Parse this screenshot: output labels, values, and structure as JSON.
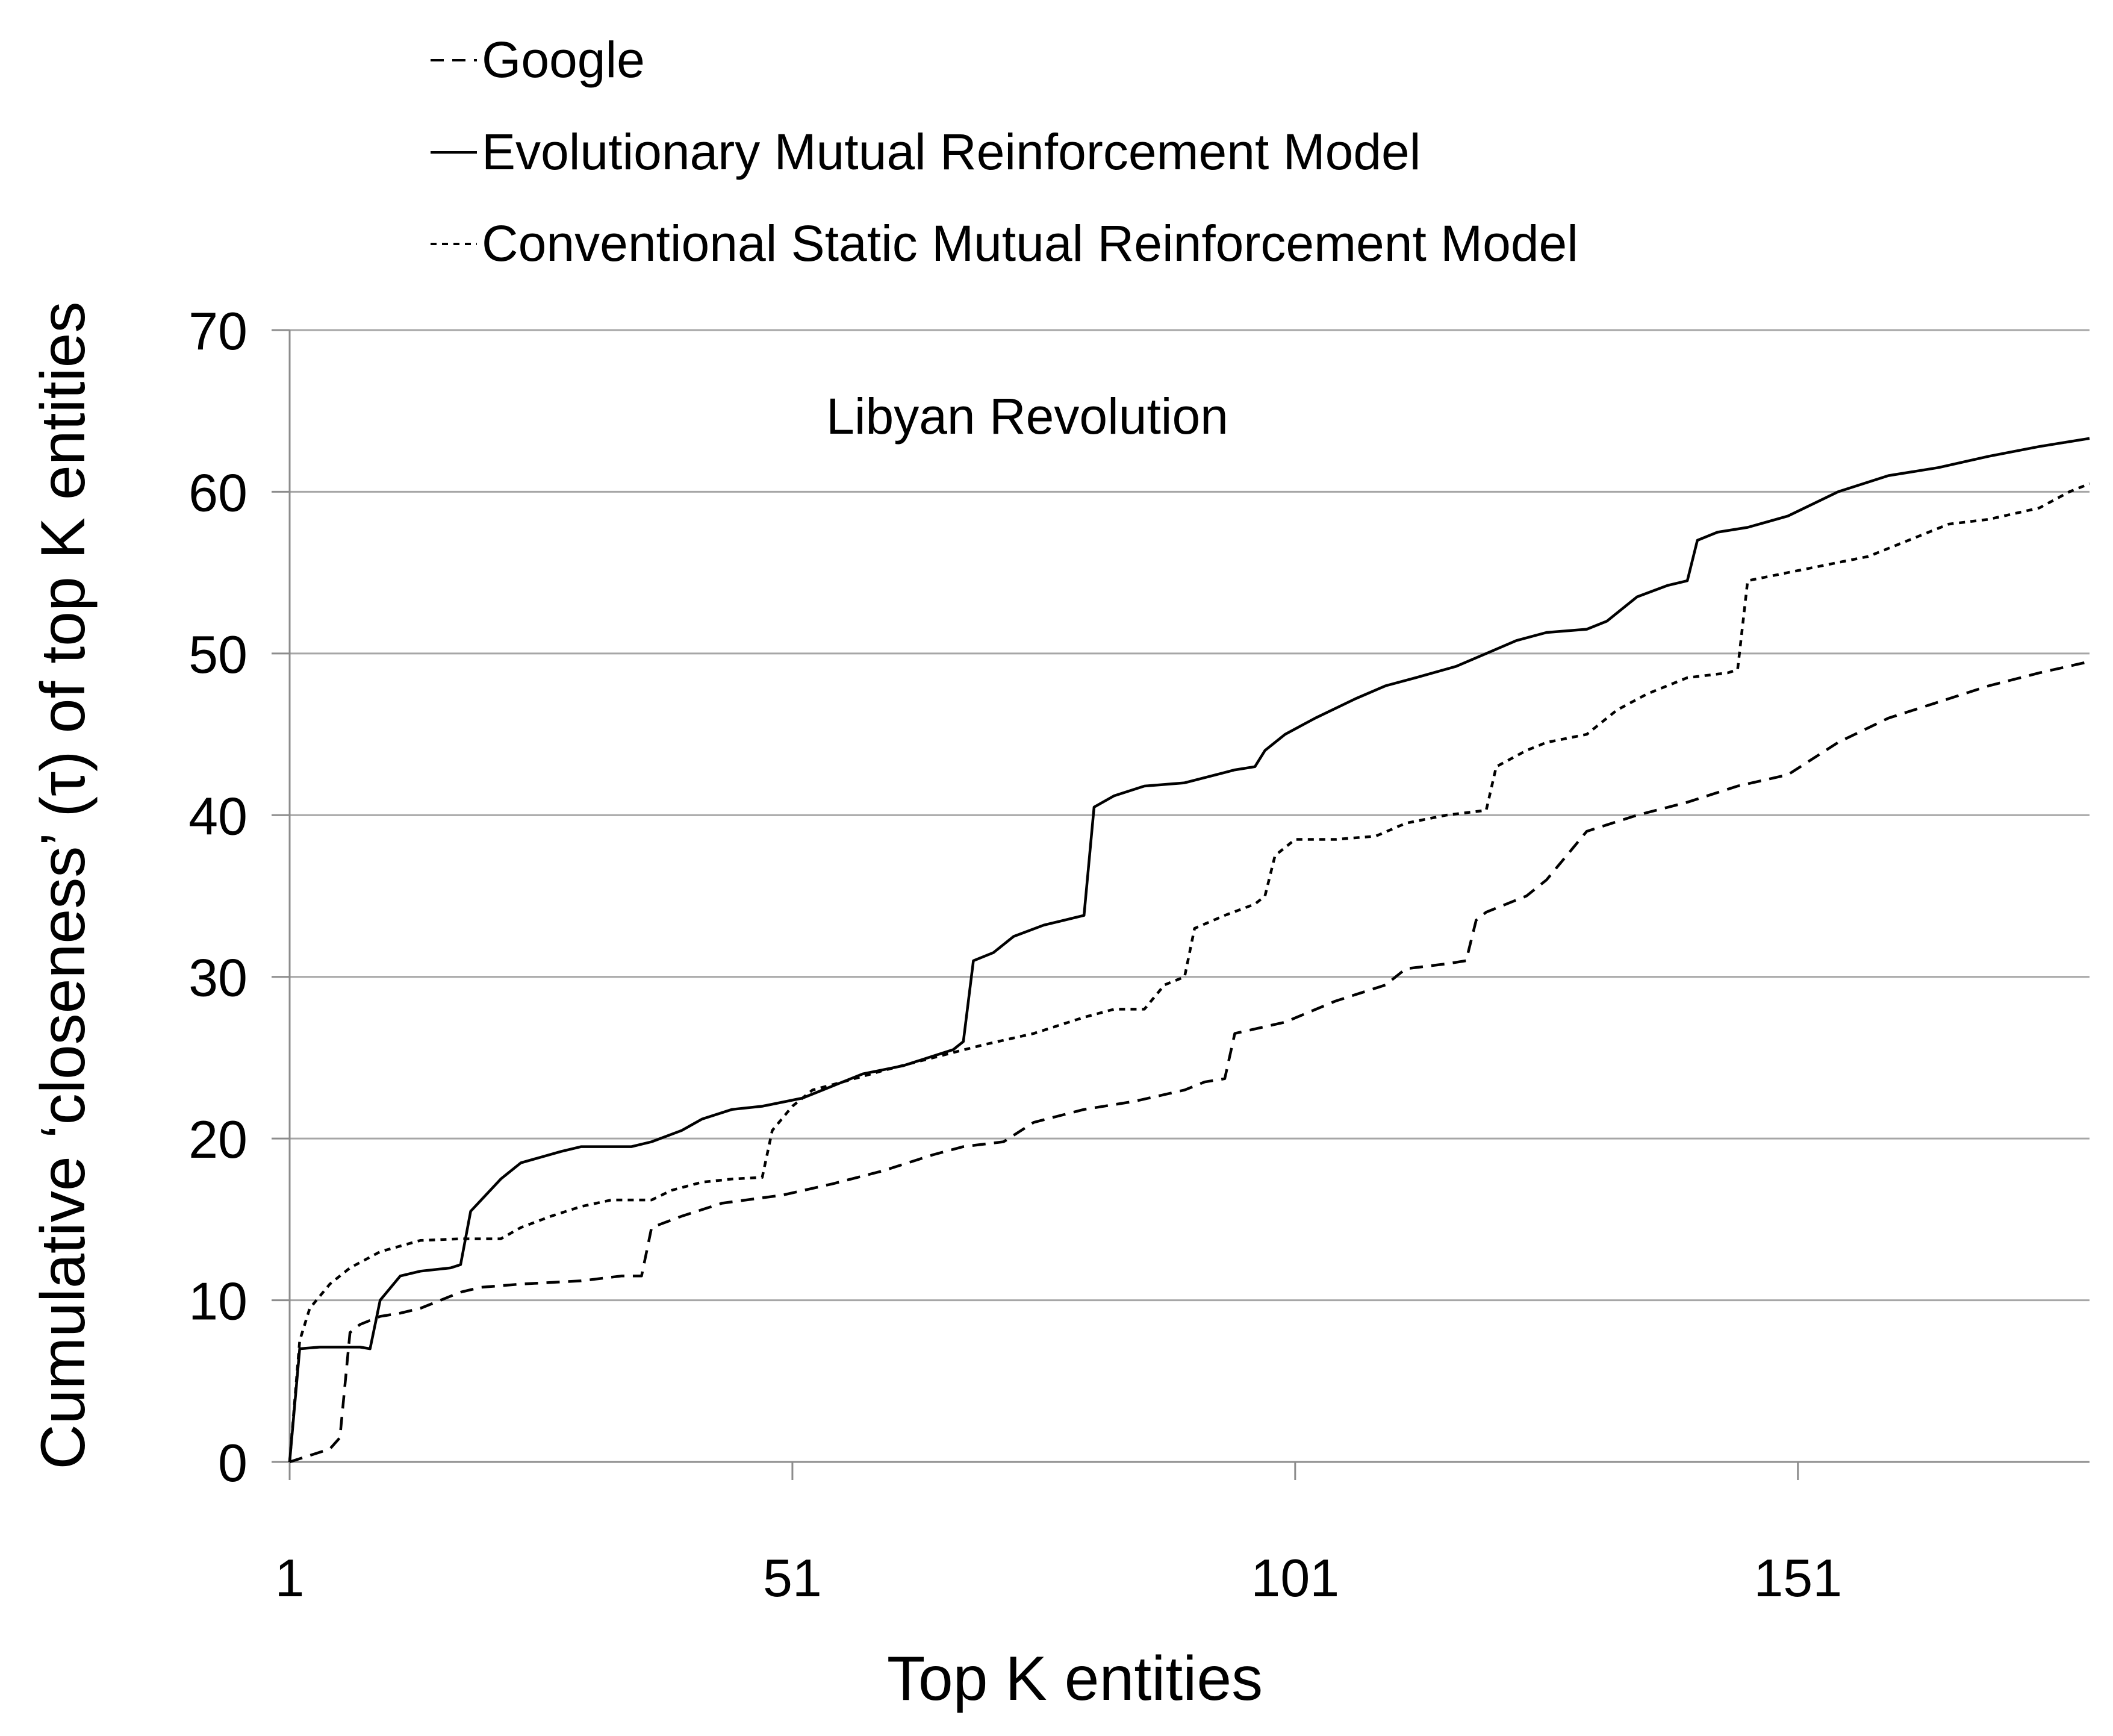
{
  "chart_data": {
    "type": "line",
    "annotation": "Libyan Revolution",
    "xlabel": "Top K entities",
    "ylabel": "Cumulative ‘closeness’ (τ) of top K entities",
    "xlim": [
      1,
      180
    ],
    "ylim": [
      0,
      70
    ],
    "x_ticks": [
      1,
      51,
      101,
      151
    ],
    "x_tick_labels": [
      "1",
      "51",
      "101",
      "151"
    ],
    "y_ticks": [
      0,
      10,
      20,
      30,
      40,
      50,
      60,
      70
    ],
    "y_tick_labels": [
      "0",
      "10",
      "20",
      "30",
      "40",
      "50",
      "60",
      "70"
    ],
    "grid": "horizontal",
    "legend_position": "top-left",
    "series": [
      {
        "name": "Google",
        "dash": "long-dash",
        "points": [
          [
            1,
            0
          ],
          [
            3,
            0.4
          ],
          [
            5,
            0.8
          ],
          [
            6,
            1.5
          ],
          [
            7,
            8
          ],
          [
            8,
            8.5
          ],
          [
            10,
            9
          ],
          [
            12,
            9.2
          ],
          [
            14,
            9.5
          ],
          [
            16,
            10
          ],
          [
            18,
            10.5
          ],
          [
            20,
            10.8
          ],
          [
            24,
            11
          ],
          [
            30,
            11.2
          ],
          [
            34,
            11.5
          ],
          [
            36,
            11.5
          ],
          [
            37,
            14.5
          ],
          [
            40,
            15.2
          ],
          [
            44,
            16
          ],
          [
            50,
            16.5
          ],
          [
            55,
            17.2
          ],
          [
            60,
            18
          ],
          [
            65,
            19
          ],
          [
            68,
            19.5
          ],
          [
            72,
            19.8
          ],
          [
            75,
            21
          ],
          [
            80,
            21.8
          ],
          [
            85,
            22.3
          ],
          [
            90,
            23
          ],
          [
            92,
            23.5
          ],
          [
            94,
            23.7
          ],
          [
            95,
            26.5
          ],
          [
            100,
            27.2
          ],
          [
            105,
            28.5
          ],
          [
            110,
            29.5
          ],
          [
            112,
            30.5
          ],
          [
            116,
            30.8
          ],
          [
            118,
            31
          ],
          [
            119,
            33.5
          ],
          [
            120,
            34
          ],
          [
            124,
            35
          ],
          [
            126,
            36
          ],
          [
            128,
            37.5
          ],
          [
            130,
            39
          ],
          [
            135,
            40
          ],
          [
            140,
            40.8
          ],
          [
            145,
            41.8
          ],
          [
            150,
            42.5
          ],
          [
            155,
            44.5
          ],
          [
            160,
            46
          ],
          [
            165,
            47
          ],
          [
            170,
            48
          ],
          [
            175,
            48.8
          ],
          [
            180,
            49.5
          ]
        ]
      },
      {
        "name": "Evolutionary Mutual Reinforcement Model",
        "dash": "solid",
        "points": [
          [
            1,
            0
          ],
          [
            2,
            7
          ],
          [
            4,
            7.1
          ],
          [
            8,
            7.1
          ],
          [
            9,
            7
          ],
          [
            10,
            10
          ],
          [
            12,
            11.5
          ],
          [
            14,
            11.8
          ],
          [
            17,
            12
          ],
          [
            18,
            12.2
          ],
          [
            19,
            15.5
          ],
          [
            22,
            17.5
          ],
          [
            24,
            18.5
          ],
          [
            28,
            19.2
          ],
          [
            30,
            19.5
          ],
          [
            35,
            19.5
          ],
          [
            37,
            19.8
          ],
          [
            40,
            20.5
          ],
          [
            42,
            21.2
          ],
          [
            45,
            21.8
          ],
          [
            48,
            22
          ],
          [
            52,
            22.5
          ],
          [
            54,
            23
          ],
          [
            58,
            24
          ],
          [
            62,
            24.5
          ],
          [
            67,
            25.5
          ],
          [
            68,
            26
          ],
          [
            69,
            31
          ],
          [
            71,
            31.5
          ],
          [
            73,
            32.5
          ],
          [
            76,
            33.2
          ],
          [
            78,
            33.5
          ],
          [
            80,
            33.8
          ],
          [
            81,
            40.5
          ],
          [
            83,
            41.2
          ],
          [
            86,
            41.8
          ],
          [
            90,
            42
          ],
          [
            95,
            42.8
          ],
          [
            97,
            43
          ],
          [
            98,
            44
          ],
          [
            100,
            45
          ],
          [
            103,
            46
          ],
          [
            107,
            47.2
          ],
          [
            110,
            48
          ],
          [
            113,
            48.5
          ],
          [
            117,
            49.2
          ],
          [
            120,
            50
          ],
          [
            123,
            50.8
          ],
          [
            126,
            51.3
          ],
          [
            130,
            51.5
          ],
          [
            132,
            52
          ],
          [
            135,
            53.5
          ],
          [
            138,
            54.2
          ],
          [
            140,
            54.5
          ],
          [
            141,
            57
          ],
          [
            143,
            57.5
          ],
          [
            146,
            57.8
          ],
          [
            150,
            58.5
          ],
          [
            155,
            60
          ],
          [
            160,
            61
          ],
          [
            165,
            61.5
          ],
          [
            170,
            62.2
          ],
          [
            175,
            62.8
          ],
          [
            180,
            63.3
          ]
        ]
      },
      {
        "name": "Conventional Static Mutual Reinforcement Model",
        "dash": "short-dash",
        "points": [
          [
            1,
            0
          ],
          [
            2,
            7.5
          ],
          [
            3,
            9.5
          ],
          [
            5,
            11
          ],
          [
            7,
            12
          ],
          [
            10,
            13
          ],
          [
            14,
            13.7
          ],
          [
            18,
            13.8
          ],
          [
            22,
            13.8
          ],
          [
            24,
            14.5
          ],
          [
            27,
            15.2
          ],
          [
            30,
            15.8
          ],
          [
            33,
            16.2
          ],
          [
            37,
            16.2
          ],
          [
            39,
            16.8
          ],
          [
            42,
            17.3
          ],
          [
            45,
            17.5
          ],
          [
            48,
            17.6
          ],
          [
            49,
            20.5
          ],
          [
            51,
            22
          ],
          [
            53,
            23
          ],
          [
            56,
            23.5
          ],
          [
            60,
            24.2
          ],
          [
            65,
            25
          ],
          [
            70,
            25.8
          ],
          [
            75,
            26.5
          ],
          [
            80,
            27.5
          ],
          [
            83,
            28
          ],
          [
            86,
            28
          ],
          [
            88,
            29.5
          ],
          [
            90,
            30
          ],
          [
            91,
            33
          ],
          [
            94,
            33.8
          ],
          [
            97,
            34.5
          ],
          [
            98,
            35
          ],
          [
            99,
            37.5
          ],
          [
            101,
            38.5
          ],
          [
            105,
            38.5
          ],
          [
            109,
            38.7
          ],
          [
            112,
            39.5
          ],
          [
            116,
            40
          ],
          [
            120,
            40.3
          ],
          [
            121,
            43
          ],
          [
            124,
            44
          ],
          [
            126,
            44.5
          ],
          [
            130,
            45
          ],
          [
            133,
            46.5
          ],
          [
            136,
            47.5
          ],
          [
            140,
            48.5
          ],
          [
            144,
            48.8
          ],
          [
            145,
            49
          ],
          [
            146,
            54.5
          ],
          [
            150,
            55
          ],
          [
            154,
            55.5
          ],
          [
            158,
            56
          ],
          [
            162,
            57
          ],
          [
            166,
            58
          ],
          [
            170,
            58.3
          ],
          [
            175,
            59
          ],
          [
            178,
            60
          ],
          [
            180,
            60.5
          ]
        ]
      }
    ]
  }
}
